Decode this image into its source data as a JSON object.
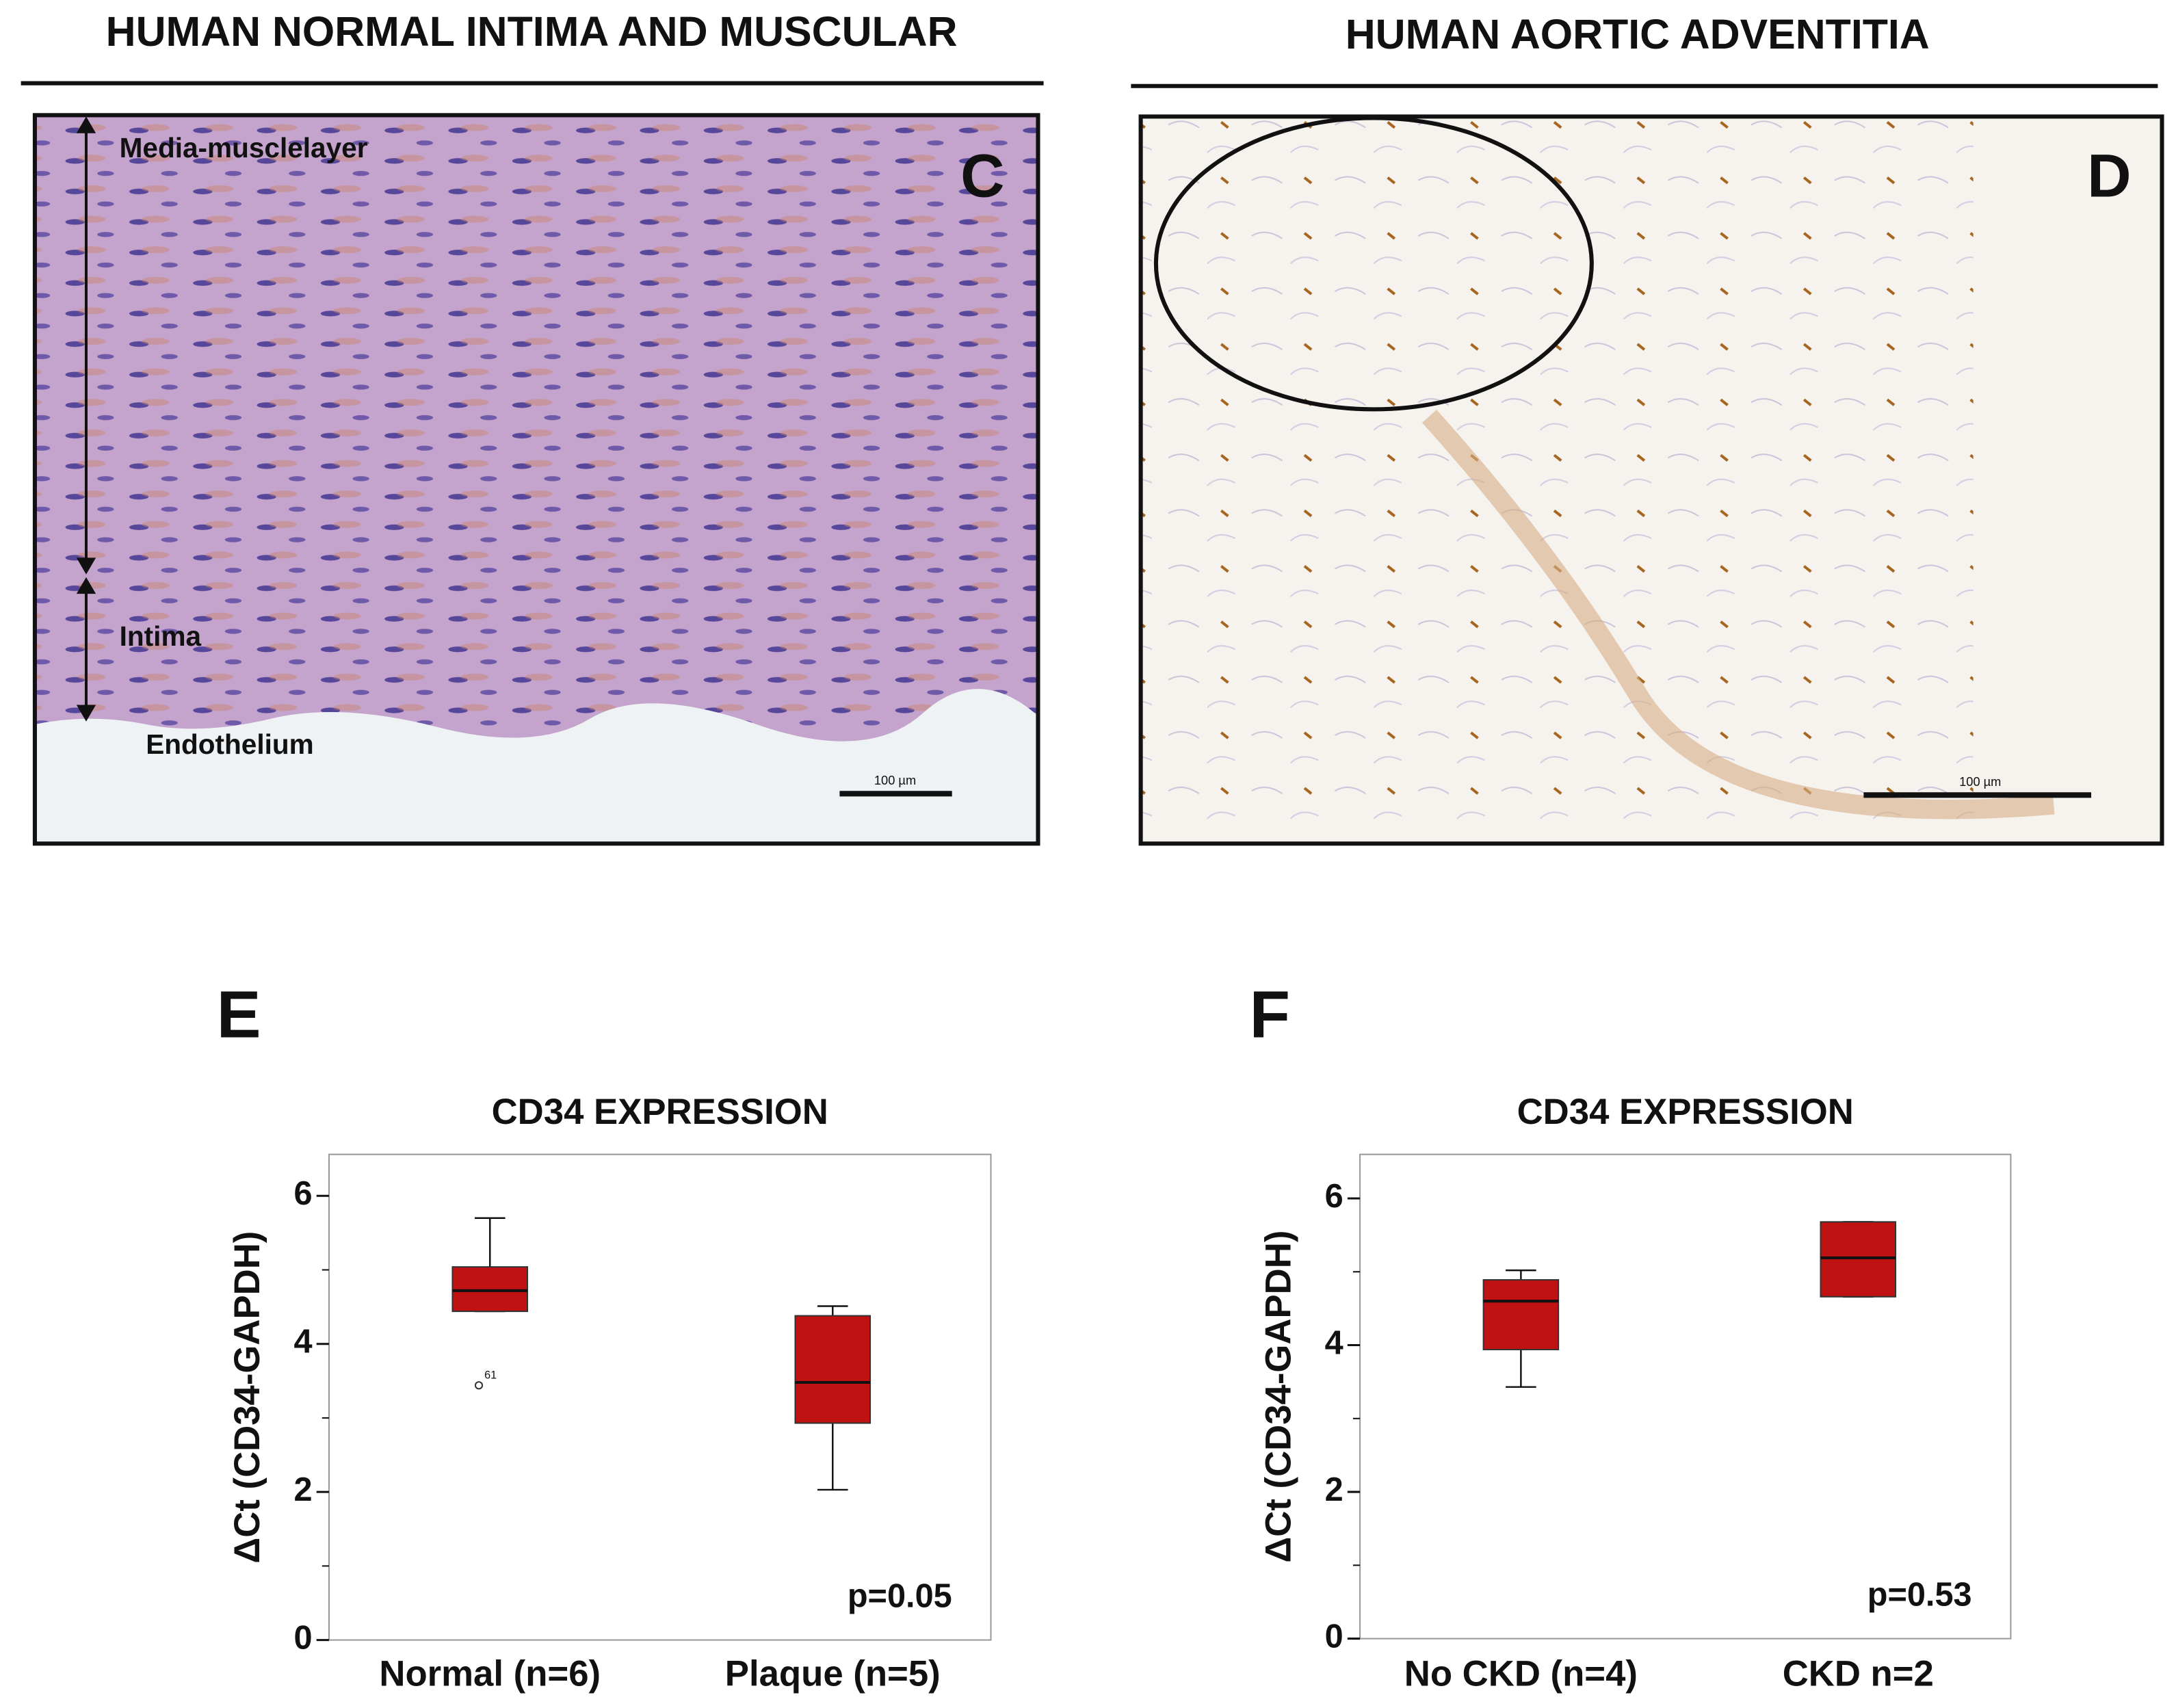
{
  "panels": [
    {
      "title": "HUMAN NORMAL INTIMA AND MUSCULAR",
      "letter": "C",
      "labels": [
        "Media-musclelayer",
        "Intima",
        "Endothelium"
      ],
      "scale_bar": "100 µm"
    },
    {
      "title": "HUMAN AORTIC ADVENTITIA",
      "letter": "D",
      "scale_bar": "100 µm"
    }
  ],
  "chart_data": [
    {
      "type": "box",
      "panel": "E",
      "title": "CD34 EXPRESSION",
      "ylabel": "ΔCt (CD34-GAPDH)",
      "categories": [
        "Normal (n=6)",
        "Plaque (n=5)"
      ],
      "boxes": [
        {
          "min": 4.44,
          "q1": 4.44,
          "median": 4.72,
          "q3": 5.04,
          "max": 5.7,
          "outliers": [
            {
              "value": 3.44,
              "label": "61"
            }
          ]
        },
        {
          "min": 2.03,
          "q1": 2.93,
          "median": 3.48,
          "q3": 4.38,
          "max": 4.51
        }
      ],
      "color": "#c01212",
      "ylim": [
        0,
        6.56
      ],
      "yticks": [
        0,
        2,
        4,
        6
      ],
      "minor_yticks": [
        1,
        3,
        5
      ],
      "annotation": "p=0.05"
    },
    {
      "type": "box",
      "panel": "F",
      "title": "CD34 EXPRESSION",
      "ylabel": "ΔCt (CD34-GAPDH)",
      "categories": [
        "No CKD (n=4)",
        "CKD n=2"
      ],
      "boxes": [
        {
          "min": 3.43,
          "q1": 3.94,
          "median": 4.6,
          "q3": 4.89,
          "max": 5.02
        },
        {
          "min": 4.66,
          "q1": 4.66,
          "median": 5.19,
          "q3": 5.68,
          "max": 5.68
        }
      ],
      "color": "#c01212",
      "ylim": [
        0,
        6.6
      ],
      "yticks": [
        0,
        2,
        4,
        6
      ],
      "minor_yticks": [
        1,
        3,
        5
      ],
      "annotation": "p=0.53"
    }
  ]
}
